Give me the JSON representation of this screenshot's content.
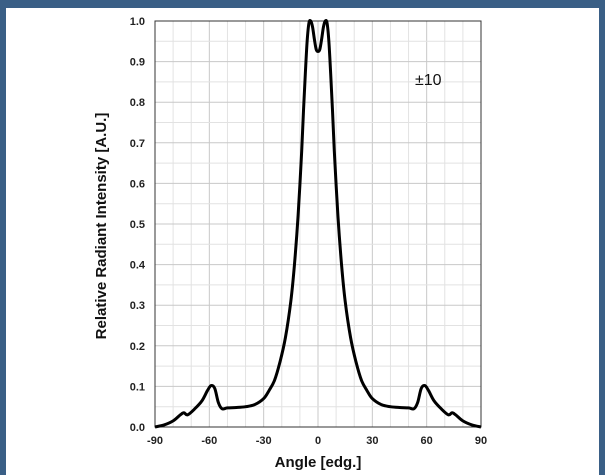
{
  "chart_data": {
    "type": "line",
    "title": "",
    "xlabel": "Angle [edg.]",
    "ylabel": "Relative Radiant Intensity [A.U.]",
    "annotation": "±10",
    "xlim": [
      -90,
      90
    ],
    "ylim": [
      0,
      1.0
    ],
    "x_ticks": [
      -90,
      -60,
      -30,
      0,
      30,
      60,
      90
    ],
    "y_ticks": [
      0.0,
      0.1,
      0.2,
      0.3,
      0.4,
      0.5,
      0.6,
      0.7,
      0.8,
      0.9,
      1.0
    ],
    "x_tick_labels": [
      "-90",
      "-60",
      "-30",
      "0",
      "30",
      "60",
      "90"
    ],
    "y_tick_labels": [
      "0.0",
      "0.1",
      "0.2",
      "0.3",
      "0.4",
      "0.5",
      "0.6",
      "0.7",
      "0.8",
      "0.9",
      "1.0"
    ],
    "grid": true,
    "legend": "none",
    "series": [
      {
        "color": "#000000",
        "x": [
          -90,
          -85,
          -80,
          -76,
          -74,
          -72,
          -68,
          -64,
          -61,
          -59,
          -57,
          -55,
          -53,
          -50,
          -45,
          -40,
          -35,
          -30,
          -27,
          -24,
          -21,
          -18,
          -15,
          -13,
          -11,
          -9,
          -8,
          -7,
          -6,
          -5,
          -4,
          -3,
          -2,
          -1,
          0,
          1,
          2,
          3,
          4,
          5,
          6,
          7,
          8,
          9,
          11,
          13,
          15,
          18,
          21,
          24,
          27,
          30,
          35,
          40,
          45,
          50,
          53,
          55,
          57,
          59,
          61,
          64,
          68,
          72,
          74,
          76,
          80,
          85,
          90
        ],
        "y": [
          0.0,
          0.005,
          0.015,
          0.03,
          0.035,
          0.03,
          0.045,
          0.065,
          0.09,
          0.102,
          0.095,
          0.06,
          0.045,
          0.047,
          0.048,
          0.05,
          0.055,
          0.07,
          0.09,
          0.115,
          0.16,
          0.22,
          0.31,
          0.4,
          0.52,
          0.68,
          0.78,
          0.87,
          0.95,
          0.995,
          1.0,
          0.985,
          0.955,
          0.93,
          0.925,
          0.93,
          0.955,
          0.985,
          1.0,
          0.995,
          0.95,
          0.87,
          0.78,
          0.68,
          0.52,
          0.4,
          0.31,
          0.22,
          0.16,
          0.115,
          0.09,
          0.07,
          0.055,
          0.05,
          0.048,
          0.047,
          0.045,
          0.06,
          0.095,
          0.102,
          0.09,
          0.065,
          0.045,
          0.03,
          0.035,
          0.03,
          0.015,
          0.005,
          0.0
        ]
      }
    ]
  }
}
